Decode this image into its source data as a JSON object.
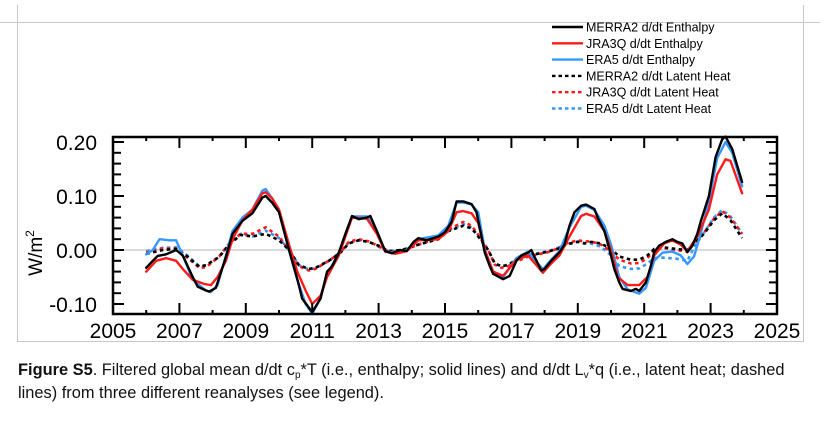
{
  "chart_data": {
    "type": "line",
    "title": "",
    "xlabel": "",
    "ylabel": "W/m²",
    "ylabel_base": "W/m",
    "ylabel_sup": "2",
    "xlim": [
      2005,
      2025
    ],
    "ylim": [
      -0.11,
      0.21
    ],
    "grid": false,
    "zero_line": true,
    "legend_position": "top-right",
    "x_ticks": [
      "2005",
      "2007",
      "2009",
      "2011",
      "2013",
      "2015",
      "2017",
      "2019",
      "2021",
      "2023",
      "2025"
    ],
    "x_tick_values": [
      2005,
      2007,
      2009,
      2011,
      2013,
      2015,
      2017,
      2019,
      2021,
      2023,
      2025
    ],
    "x_minor_step": 1,
    "y_ticks": [
      "0.20",
      "0.10",
      "0.00",
      "-0.10"
    ],
    "y_tick_values": [
      0.2,
      0.1,
      0.0,
      -0.1
    ],
    "y_minor_step": 0.02,
    "series": [
      {
        "name": "MERRA2 d/dt Enthalpy",
        "color": "#000000",
        "style": "solid",
        "x": [
          2006.0,
          2006.2,
          2006.35,
          2006.6,
          2006.9,
          2007.1,
          2007.4,
          2007.55,
          2007.8,
          2007.9,
          2008.1,
          2008.4,
          2008.6,
          2008.9,
          2009.2,
          2009.5,
          2009.6,
          2009.8,
          2010.0,
          2010.3,
          2010.55,
          2010.7,
          2011.0,
          2011.25,
          2011.45,
          2011.6,
          2011.8,
          2012.0,
          2012.2,
          2012.4,
          2012.65,
          2012.75,
          2012.95,
          2013.2,
          2013.4,
          2013.65,
          2013.85,
          2014.05,
          2014.2,
          2014.45,
          2014.8,
          2015.0,
          2015.2,
          2015.35,
          2015.55,
          2015.8,
          2015.95,
          2016.2,
          2016.35,
          2016.45,
          2016.75,
          2016.95,
          2017.15,
          2017.3,
          2017.5,
          2017.6,
          2017.7,
          2017.9,
          2018.0,
          2018.2,
          2018.45,
          2018.6,
          2018.75,
          2018.9,
          2019.1,
          2019.25,
          2019.5,
          2019.6,
          2019.8,
          2019.95,
          2020.1,
          2020.25,
          2020.35,
          2020.6,
          2020.75,
          2020.85,
          2021.05,
          2021.2,
          2021.3,
          2021.45,
          2021.65,
          2021.85,
          2022.0,
          2022.15,
          2022.3,
          2022.45,
          2022.6,
          2022.7,
          2022.95,
          2023.15,
          2023.35,
          2023.45,
          2023.65,
          2023.95
        ],
        "values": [
          -0.033,
          -0.02,
          -0.011,
          -0.008,
          0.0,
          -0.01,
          -0.05,
          -0.068,
          -0.075,
          -0.077,
          -0.07,
          -0.013,
          0.03,
          0.054,
          0.068,
          0.097,
          0.1,
          0.087,
          0.07,
          0.0,
          -0.054,
          -0.09,
          -0.115,
          -0.09,
          -0.04,
          -0.03,
          -0.005,
          0.03,
          0.063,
          0.057,
          0.06,
          0.063,
          0.035,
          -0.002,
          -0.006,
          0.0,
          -0.002,
          0.015,
          0.022,
          0.018,
          0.025,
          0.033,
          0.052,
          0.09,
          0.09,
          0.085,
          0.07,
          -0.005,
          -0.03,
          -0.044,
          -0.054,
          -0.048,
          -0.02,
          -0.01,
          -0.005,
          0.0,
          -0.013,
          -0.038,
          -0.035,
          -0.02,
          -0.004,
          0.01,
          0.045,
          0.07,
          0.082,
          0.084,
          0.076,
          0.06,
          0.035,
          0.002,
          -0.035,
          -0.06,
          -0.072,
          -0.076,
          -0.072,
          -0.076,
          -0.06,
          -0.03,
          -0.004,
          0.008,
          0.015,
          0.02,
          0.015,
          0.012,
          -0.004,
          0.008,
          0.03,
          0.052,
          0.1,
          0.172,
          0.205,
          0.21,
          0.187,
          0.126
        ]
      },
      {
        "name": "JRA3Q d/dt Enthalpy",
        "color": "#ff1a1a",
        "style": "solid",
        "x": [
          2006.0,
          2006.3,
          2006.6,
          2006.9,
          2007.1,
          2007.4,
          2007.75,
          2007.95,
          2008.15,
          2008.4,
          2008.6,
          2008.9,
          2009.2,
          2009.5,
          2009.6,
          2009.8,
          2010.0,
          2010.3,
          2010.55,
          2010.8,
          2011.0,
          2011.25,
          2011.45,
          2011.8,
          2012.2,
          2012.65,
          2012.95,
          2013.2,
          2013.5,
          2013.85,
          2014.2,
          2014.8,
          2015.1,
          2015.35,
          2015.55,
          2015.8,
          2016.0,
          2016.2,
          2016.45,
          2016.75,
          2017.15,
          2017.5,
          2017.95,
          2018.2,
          2018.45,
          2018.75,
          2019.1,
          2019.25,
          2019.5,
          2019.8,
          2020.0,
          2020.2,
          2020.5,
          2020.85,
          2021.1,
          2021.3,
          2021.6,
          2021.85,
          2022.1,
          2022.3,
          2022.6,
          2022.95,
          2023.2,
          2023.45,
          2023.6,
          2023.95
        ],
        "values": [
          -0.04,
          -0.02,
          -0.015,
          -0.02,
          -0.035,
          -0.055,
          -0.063,
          -0.065,
          -0.05,
          -0.02,
          0.02,
          0.055,
          0.075,
          0.105,
          0.107,
          0.095,
          0.075,
          0.01,
          -0.04,
          -0.075,
          -0.1,
          -0.085,
          -0.05,
          -0.01,
          0.06,
          0.058,
          0.03,
          -0.003,
          -0.007,
          -0.002,
          0.018,
          0.02,
          0.035,
          0.07,
          0.072,
          0.068,
          0.05,
          0.0,
          -0.04,
          -0.048,
          -0.018,
          -0.01,
          -0.042,
          -0.025,
          -0.01,
          0.025,
          0.063,
          0.067,
          0.062,
          0.035,
          0.0,
          -0.05,
          -0.065,
          -0.065,
          -0.05,
          -0.01,
          0.012,
          0.018,
          0.01,
          -0.002,
          0.025,
          0.075,
          0.14,
          0.168,
          0.165,
          0.105
        ]
      },
      {
        "name": "ERA5 d/dt Enthalpy",
        "color": "#3399ff",
        "style": "solid",
        "x": [
          2006.0,
          2006.2,
          2006.4,
          2006.7,
          2006.9,
          2007.1,
          2007.4,
          2007.8,
          2007.95,
          2008.15,
          2008.4,
          2008.6,
          2008.9,
          2009.2,
          2009.5,
          2009.6,
          2009.8,
          2010.0,
          2010.3,
          2010.55,
          2010.8,
          2011.0,
          2011.25,
          2011.45,
          2011.8,
          2012.2,
          2012.65,
          2012.95,
          2013.2,
          2013.5,
          2013.85,
          2014.2,
          2014.8,
          2015.1,
          2015.35,
          2015.55,
          2015.8,
          2016.0,
          2016.2,
          2016.45,
          2016.75,
          2017.15,
          2017.5,
          2017.95,
          2018.2,
          2018.45,
          2018.75,
          2019.1,
          2019.25,
          2019.5,
          2019.8,
          2020.0,
          2020.25,
          2020.5,
          2020.85,
          2021.05,
          2021.3,
          2021.55,
          2021.85,
          2022.1,
          2022.3,
          2022.5,
          2022.7,
          2022.95,
          2023.2,
          2023.45,
          2023.65,
          2023.95
        ],
        "values": [
          -0.008,
          0.0,
          0.02,
          0.018,
          0.018,
          -0.01,
          -0.055,
          -0.075,
          -0.078,
          -0.065,
          -0.01,
          0.035,
          0.06,
          0.075,
          0.11,
          0.113,
          0.095,
          0.072,
          0.0,
          -0.055,
          -0.1,
          -0.118,
          -0.09,
          -0.045,
          -0.006,
          0.062,
          0.062,
          0.032,
          -0.003,
          -0.004,
          0.0,
          0.02,
          0.027,
          0.045,
          0.088,
          0.088,
          0.084,
          0.07,
          0.0,
          -0.04,
          -0.05,
          -0.015,
          -0.003,
          -0.036,
          -0.018,
          -0.002,
          0.042,
          0.08,
          0.082,
          0.074,
          0.045,
          0.01,
          -0.05,
          -0.073,
          -0.081,
          -0.07,
          -0.02,
          -0.005,
          -0.003,
          -0.01,
          -0.026,
          -0.012,
          0.03,
          0.09,
          0.17,
          0.2,
          0.18,
          0.118
        ]
      },
      {
        "name": "MERRA2 d/dt Latent Heat",
        "color": "#000000",
        "style": "dashed",
        "x": [
          2006.0,
          2006.5,
          2006.9,
          2007.2,
          2007.6,
          2007.8,
          2008.2,
          2008.5,
          2008.85,
          2009.2,
          2009.6,
          2010.0,
          2010.3,
          2010.6,
          2010.9,
          2011.1,
          2011.5,
          2011.85,
          2012.1,
          2012.4,
          2012.7,
          2013.0,
          2013.3,
          2013.7,
          2014.2,
          2014.8,
          2015.1,
          2015.55,
          2015.8,
          2016.0,
          2016.3,
          2016.5,
          2016.7,
          2016.9,
          2017.2,
          2017.5,
          2017.8,
          2018.1,
          2018.4,
          2018.65,
          2019.0,
          2019.2,
          2019.4,
          2019.7,
          2020.0,
          2020.25,
          2020.6,
          2020.85,
          2021.1,
          2021.3,
          2021.55,
          2021.95,
          2022.3,
          2022.5,
          2022.8,
          2023.1,
          2023.35,
          2023.6,
          2023.95
        ],
        "values": [
          -0.007,
          0.0,
          0.002,
          -0.01,
          -0.031,
          -0.028,
          -0.013,
          0.01,
          0.028,
          0.025,
          0.03,
          0.018,
          0.0,
          -0.028,
          -0.035,
          -0.033,
          -0.02,
          -0.005,
          0.012,
          0.018,
          0.015,
          0.008,
          -0.002,
          0.0,
          0.01,
          0.02,
          0.035,
          0.045,
          0.04,
          0.025,
          0.0,
          -0.025,
          -0.03,
          -0.028,
          -0.017,
          -0.01,
          -0.007,
          -0.003,
          0.002,
          0.01,
          0.015,
          0.012,
          0.015,
          0.012,
          0.002,
          -0.012,
          -0.018,
          -0.018,
          -0.01,
          0.002,
          0.005,
          0.002,
          0.0,
          0.012,
          0.03,
          0.055,
          0.068,
          0.055,
          0.022
        ]
      },
      {
        "name": "JRA3Q d/dt Latent Heat",
        "color": "#ff1a1a",
        "style": "dashed",
        "x": [
          2006.0,
          2006.5,
          2006.9,
          2007.2,
          2007.6,
          2007.8,
          2008.2,
          2008.5,
          2008.85,
          2009.2,
          2009.6,
          2010.0,
          2010.3,
          2010.6,
          2010.9,
          2011.1,
          2011.5,
          2011.85,
          2012.1,
          2012.4,
          2012.7,
          2013.0,
          2013.3,
          2013.7,
          2014.2,
          2014.8,
          2015.1,
          2015.55,
          2015.8,
          2016.0,
          2016.3,
          2016.5,
          2016.7,
          2016.9,
          2017.2,
          2017.5,
          2017.8,
          2018.1,
          2018.4,
          2018.65,
          2019.0,
          2019.2,
          2019.4,
          2019.7,
          2020.0,
          2020.25,
          2020.6,
          2020.85,
          2021.1,
          2021.3,
          2021.55,
          2021.95,
          2022.3,
          2022.5,
          2022.8,
          2023.1,
          2023.35,
          2023.6,
          2023.95
        ],
        "values": [
          -0.005,
          0.003,
          0.003,
          -0.012,
          -0.033,
          -0.032,
          -0.012,
          0.012,
          0.03,
          0.03,
          0.042,
          0.025,
          0.0,
          -0.03,
          -0.038,
          -0.035,
          -0.02,
          -0.005,
          0.015,
          0.02,
          0.016,
          0.007,
          -0.003,
          -0.002,
          0.01,
          0.022,
          0.038,
          0.052,
          0.045,
          0.028,
          0.0,
          -0.027,
          -0.033,
          -0.03,
          -0.02,
          -0.012,
          -0.008,
          -0.004,
          0.003,
          0.012,
          0.018,
          0.016,
          0.016,
          0.01,
          -0.003,
          -0.018,
          -0.025,
          -0.024,
          -0.015,
          0.0,
          0.004,
          0.0,
          -0.003,
          0.012,
          0.032,
          0.058,
          0.072,
          0.06,
          0.03
        ]
      },
      {
        "name": "ERA5 d/dt Latent Heat",
        "color": "#3399ff",
        "style": "dashed",
        "x": [
          2006.0,
          2006.5,
          2006.9,
          2007.2,
          2007.6,
          2007.8,
          2008.2,
          2008.5,
          2008.85,
          2009.2,
          2009.6,
          2010.0,
          2010.3,
          2010.6,
          2010.9,
          2011.1,
          2011.5,
          2011.85,
          2012.1,
          2012.4,
          2012.7,
          2013.0,
          2013.3,
          2013.7,
          2014.2,
          2014.8,
          2015.1,
          2015.55,
          2015.8,
          2016.0,
          2016.3,
          2016.5,
          2016.7,
          2016.9,
          2017.2,
          2017.5,
          2017.8,
          2018.1,
          2018.4,
          2018.65,
          2019.0,
          2019.2,
          2019.4,
          2019.7,
          2020.0,
          2020.25,
          2020.6,
          2020.85,
          2021.1,
          2021.3,
          2021.55,
          2021.95,
          2022.3,
          2022.5,
          2022.8,
          2023.1,
          2023.35,
          2023.6,
          2023.95
        ],
        "values": [
          -0.002,
          0.004,
          0.005,
          -0.008,
          -0.03,
          -0.029,
          -0.012,
          0.012,
          0.03,
          0.025,
          0.036,
          0.022,
          0.0,
          -0.028,
          -0.036,
          -0.034,
          -0.02,
          -0.004,
          0.013,
          0.018,
          0.016,
          0.006,
          -0.002,
          0.0,
          0.01,
          0.022,
          0.036,
          0.048,
          0.042,
          0.026,
          0.0,
          -0.025,
          -0.03,
          -0.027,
          -0.016,
          -0.01,
          -0.006,
          -0.002,
          0.004,
          0.011,
          0.016,
          0.013,
          0.012,
          0.006,
          -0.01,
          -0.03,
          -0.035,
          -0.034,
          -0.025,
          -0.015,
          -0.014,
          -0.016,
          -0.02,
          0.005,
          0.032,
          0.06,
          0.074,
          0.062,
          0.03
        ]
      }
    ]
  },
  "caption": {
    "label": "Figure S5",
    "part1": ". Filtered global mean d/dt c",
    "sub1": "p",
    "part2": "*T (i.e., enthalpy; solid lines) and d/dt L",
    "sub2": "v",
    "part3": "*q (i.e., latent heat; dashed lines) from three different reanalyses (see legend)."
  }
}
